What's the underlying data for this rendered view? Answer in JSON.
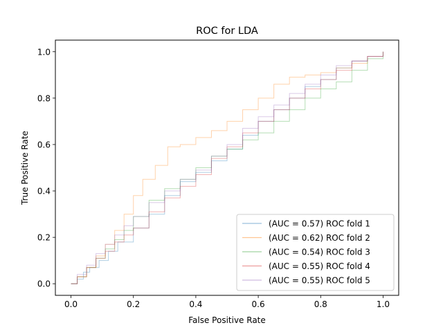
{
  "chart_data": {
    "type": "line",
    "title": "ROC for LDA",
    "xlabel": "False Positive Rate",
    "ylabel": "True Positive Rate",
    "xlim": [
      -0.05,
      1.05
    ],
    "ylim": [
      -0.05,
      1.05
    ],
    "xticks": [
      "0.0",
      "0.2",
      "0.4",
      "0.6",
      "0.8",
      "1.0"
    ],
    "yticks": [
      "0.0",
      "0.2",
      "0.4",
      "0.6",
      "0.8",
      "1.0"
    ],
    "grid": false,
    "legend_position": "lower-right",
    "series": [
      {
        "name": "(AUC = 0.57) ROC fold 1",
        "color": "#1f77b4",
        "x": [
          0.0,
          0.02,
          0.04,
          0.06,
          0.09,
          0.12,
          0.15,
          0.2,
          0.25,
          0.3,
          0.35,
          0.4,
          0.45,
          0.5,
          0.55,
          0.6,
          0.65,
          0.7,
          0.75,
          0.8,
          0.85,
          0.9,
          0.95,
          1.0
        ],
        "y": [
          0.0,
          0.02,
          0.05,
          0.07,
          0.1,
          0.14,
          0.18,
          0.24,
          0.3,
          0.38,
          0.44,
          0.48,
          0.53,
          0.58,
          0.64,
          0.7,
          0.75,
          0.8,
          0.85,
          0.88,
          0.93,
          0.96,
          0.98,
          1.0
        ]
      },
      {
        "name": "(AUC = 0.62) ROC fold 2",
        "color": "#ff7f0e",
        "x": [
          0.0,
          0.02,
          0.05,
          0.08,
          0.11,
          0.14,
          0.17,
          0.2,
          0.23,
          0.27,
          0.31,
          0.35,
          0.4,
          0.45,
          0.5,
          0.55,
          0.6,
          0.65,
          0.7,
          0.75,
          0.8,
          0.85,
          0.9,
          0.95,
          1.0
        ],
        "y": [
          0.0,
          0.03,
          0.07,
          0.12,
          0.17,
          0.23,
          0.3,
          0.38,
          0.45,
          0.51,
          0.59,
          0.6,
          0.63,
          0.66,
          0.7,
          0.75,
          0.8,
          0.86,
          0.89,
          0.9,
          0.91,
          0.93,
          0.95,
          0.98,
          1.0
        ]
      },
      {
        "name": "(AUC = 0.54) ROC fold 3",
        "color": "#2ca02c",
        "x": [
          0.0,
          0.02,
          0.05,
          0.08,
          0.11,
          0.14,
          0.17,
          0.2,
          0.25,
          0.3,
          0.35,
          0.4,
          0.45,
          0.5,
          0.55,
          0.6,
          0.65,
          0.7,
          0.75,
          0.8,
          0.85,
          0.9,
          0.95,
          1.0
        ],
        "y": [
          0.0,
          0.03,
          0.07,
          0.11,
          0.15,
          0.19,
          0.23,
          0.29,
          0.36,
          0.41,
          0.45,
          0.5,
          0.55,
          0.58,
          0.62,
          0.65,
          0.7,
          0.75,
          0.8,
          0.84,
          0.87,
          0.92,
          0.97,
          1.0
        ]
      },
      {
        "name": "(AUC = 0.55) ROC fold 4",
        "color": "#d62728",
        "x": [
          0.0,
          0.02,
          0.05,
          0.08,
          0.11,
          0.14,
          0.17,
          0.2,
          0.25,
          0.3,
          0.35,
          0.4,
          0.45,
          0.5,
          0.55,
          0.6,
          0.65,
          0.7,
          0.75,
          0.8,
          0.85,
          0.9,
          0.95,
          1.0
        ],
        "y": [
          0.0,
          0.03,
          0.07,
          0.11,
          0.14,
          0.18,
          0.21,
          0.24,
          0.31,
          0.37,
          0.42,
          0.47,
          0.54,
          0.59,
          0.65,
          0.7,
          0.75,
          0.8,
          0.84,
          0.88,
          0.92,
          0.96,
          0.98,
          1.0
        ]
      },
      {
        "name": "(AUC = 0.55) ROC fold 5",
        "color": "#9467bd",
        "x": [
          0.0,
          0.02,
          0.05,
          0.08,
          0.11,
          0.14,
          0.17,
          0.2,
          0.25,
          0.3,
          0.35,
          0.4,
          0.45,
          0.5,
          0.55,
          0.6,
          0.65,
          0.7,
          0.75,
          0.8,
          0.85,
          0.9,
          0.95,
          1.0
        ],
        "y": [
          0.0,
          0.04,
          0.08,
          0.13,
          0.17,
          0.21,
          0.25,
          0.29,
          0.35,
          0.4,
          0.45,
          0.49,
          0.55,
          0.6,
          0.67,
          0.72,
          0.77,
          0.82,
          0.86,
          0.9,
          0.94,
          0.96,
          0.98,
          1.0
        ]
      }
    ]
  }
}
